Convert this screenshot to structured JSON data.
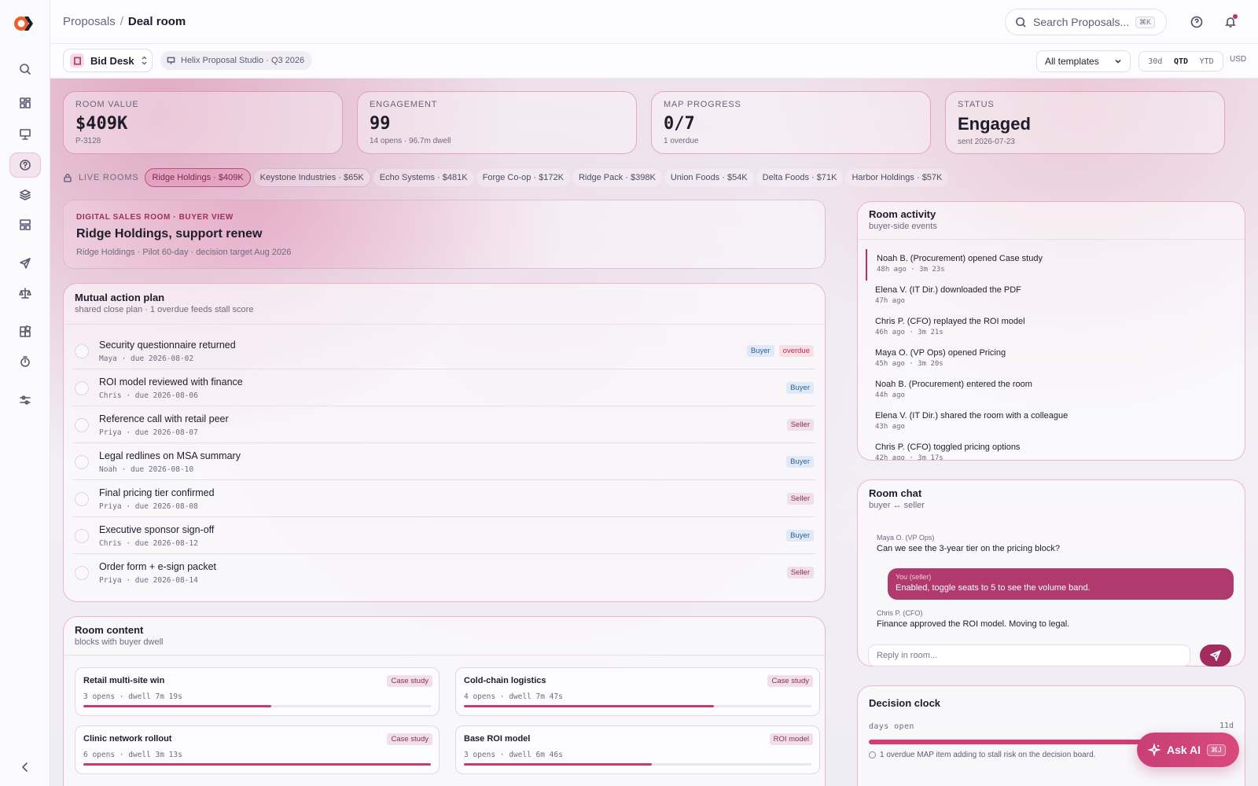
{
  "header": {
    "breadcrumb_parent": "Proposals",
    "breadcrumb_sep": "/",
    "breadcrumb_current": "Deal room",
    "search_placeholder": "Search Proposals...",
    "search_shortcut": "⌘K"
  },
  "toolbar": {
    "desk_label": "Bid Desk",
    "studio_label": "Helix Proposal Studio · Q3 2026",
    "template_select": "All templates",
    "ranges": [
      "30d",
      "QTD",
      "YTD"
    ],
    "active_range": "QTD",
    "currency": "USD"
  },
  "sidebar": {
    "items": [
      "search-icon",
      "grid-icon",
      "presentation-icon",
      "help-icon",
      "layers-icon",
      "layout-icon",
      "send-icon",
      "scale-icon",
      "blocks-icon",
      "timer-icon",
      "sliders-icon"
    ],
    "active": "help-icon",
    "collapse": "chevron-left-icon"
  },
  "kpis": [
    {
      "label": "ROOM VALUE",
      "value": "$409K",
      "sub": "P-3128"
    },
    {
      "label": "ENGAGEMENT",
      "value": "99",
      "sub": "14 opens · 96.7m dwell"
    },
    {
      "label": "MAP PROGRESS",
      "value": "0/7",
      "sub": "1 overdue"
    },
    {
      "label": "STATUS",
      "value": "Engaged",
      "sub": "sent 2026-07-23"
    }
  ],
  "live_rooms": {
    "label": "LIVE ROOMS",
    "chips": [
      "Ridge Holdings · $409K",
      "Keystone Industries · $65K",
      "Echo Systems · $481K",
      "Forge Co-op · $172K",
      "Ridge Pack · $398K",
      "Union Foods · $54K",
      "Delta Foods · $71K",
      "Harbor Holdings · $57K"
    ]
  },
  "hero": {
    "kicker": "DIGITAL SALES ROOM · BUYER VIEW",
    "title": "Ridge Holdings, support renew",
    "sub": "Ridge Holdings · Pilot 60-day · decision target Aug 2026"
  },
  "map": {
    "title": "Mutual action plan",
    "sub": "shared close plan · 1 overdue feeds stall score",
    "tasks": [
      {
        "title": "Security questionnaire returned",
        "meta": "Maya · due 2026-08-02",
        "owner": "Buyer",
        "overdue": "overdue"
      },
      {
        "title": "ROI model reviewed with finance",
        "meta": "Chris · due 2026-08-06",
        "owner": "Buyer",
        "overdue": ""
      },
      {
        "title": "Reference call with retail peer",
        "meta": "Priya · due 2026-08-07",
        "owner": "Seller",
        "overdue": ""
      },
      {
        "title": "Legal redlines on MSA summary",
        "meta": "Noah · due 2026-08-10",
        "owner": "Buyer",
        "overdue": ""
      },
      {
        "title": "Final pricing tier confirmed",
        "meta": "Priya · due 2026-08-08",
        "owner": "Seller",
        "overdue": ""
      },
      {
        "title": "Executive sponsor sign-off",
        "meta": "Chris · due 2026-08-12",
        "owner": "Buyer",
        "overdue": ""
      },
      {
        "title": "Order form + e-sign packet",
        "meta": "Priya · due 2026-08-14",
        "owner": "Seller",
        "overdue": ""
      }
    ]
  },
  "content": {
    "title": "Room content",
    "sub": "blocks with buyer dwell",
    "blocks": [
      {
        "title": "Retail multi-site win",
        "meta": "3 opens · dwell 7m 19s",
        "tag": "Case study",
        "dwell_fraction": 0.54
      },
      {
        "title": "Cold-chain logistics",
        "meta": "4 opens · dwell 7m 47s",
        "tag": "Case study",
        "dwell_fraction": 0.72
      },
      {
        "title": "Clinic network rollout",
        "meta": "6 opens · dwell 3m 13s",
        "tag": "Case study",
        "dwell_fraction": 1.0
      },
      {
        "title": "Base ROI model",
        "meta": "3 opens · dwell 6m 46s",
        "tag": "ROI model",
        "dwell_fraction": 0.54
      }
    ]
  },
  "activity": {
    "title": "Room activity",
    "sub": "buyer-side events",
    "events": [
      {
        "text": "Noah B. (Procurement) opened Case study",
        "meta": "48h ago · 3m 23s"
      },
      {
        "text": "Elena V. (IT Dir.) downloaded the PDF",
        "meta": "47h ago"
      },
      {
        "text": "Chris P. (CFO) replayed the ROI model",
        "meta": "46h ago · 3m 21s"
      },
      {
        "text": "Maya O. (VP Ops) opened Pricing",
        "meta": "45h ago · 3m 20s"
      },
      {
        "text": "Noah B. (Procurement) entered the room",
        "meta": "44h ago"
      },
      {
        "text": "Elena V. (IT Dir.) shared the room with a colleague",
        "meta": "43h ago"
      },
      {
        "text": "Chris P. (CFO) toggled pricing options",
        "meta": "42h ago · 3m 17s"
      }
    ]
  },
  "chat": {
    "title": "Room chat",
    "sub": "buyer ↔ seller",
    "messages": [
      {
        "who": "Maya O. (VP Ops)",
        "text": "Can we see the 3-year tier on the pricing block?"
      },
      {
        "who": "You (seller)",
        "text": "Enabled, toggle seats to 5 to see the volume band."
      },
      {
        "who": "Chris P. (CFO)",
        "text": "Finance approved the ROI model. Moving to legal."
      }
    ],
    "reply_placeholder": "Reply in room..."
  },
  "clock": {
    "title": "Decision clock",
    "label": "days open",
    "value": "11d",
    "progress_fraction": 0.8,
    "note": "1 overdue MAP item adding to stall risk on the decision board."
  },
  "ask_ai": {
    "label": "Ask AI",
    "shortcut": "⌘J"
  }
}
